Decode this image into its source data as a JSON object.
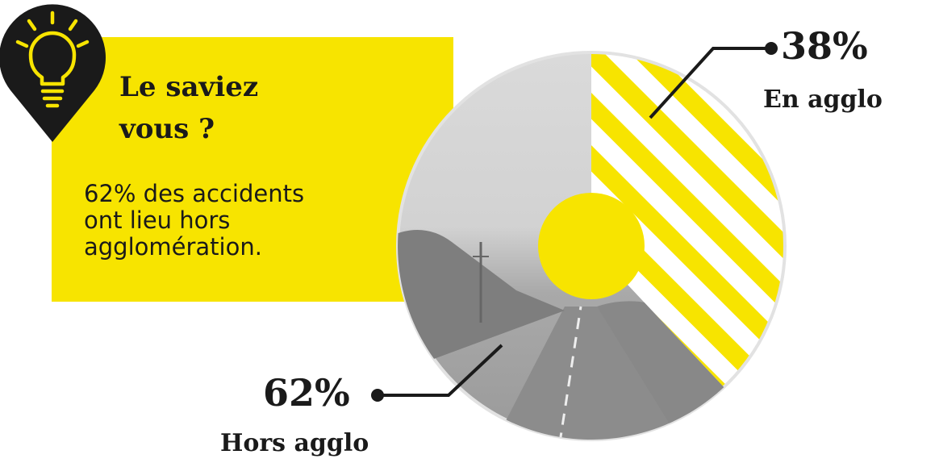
{
  "card": {
    "title": "Le saviez\nvous ?",
    "body": "62% des accidents\nont lieu hors\nagglomération."
  },
  "icons": {
    "badge": "lightbulb-icon"
  },
  "colors": {
    "accent": "#f7e400",
    "dark": "#1a1a1a",
    "photo_grey": "#b8b8b8"
  },
  "chart_data": {
    "type": "pie",
    "series": [
      {
        "label": "En agglo",
        "value": 38,
        "display": "38%",
        "fill": "yellow-stripes"
      },
      {
        "label": "Hors agglo",
        "value": 62,
        "display": "62%",
        "fill": "grey-road-photo"
      }
    ]
  }
}
